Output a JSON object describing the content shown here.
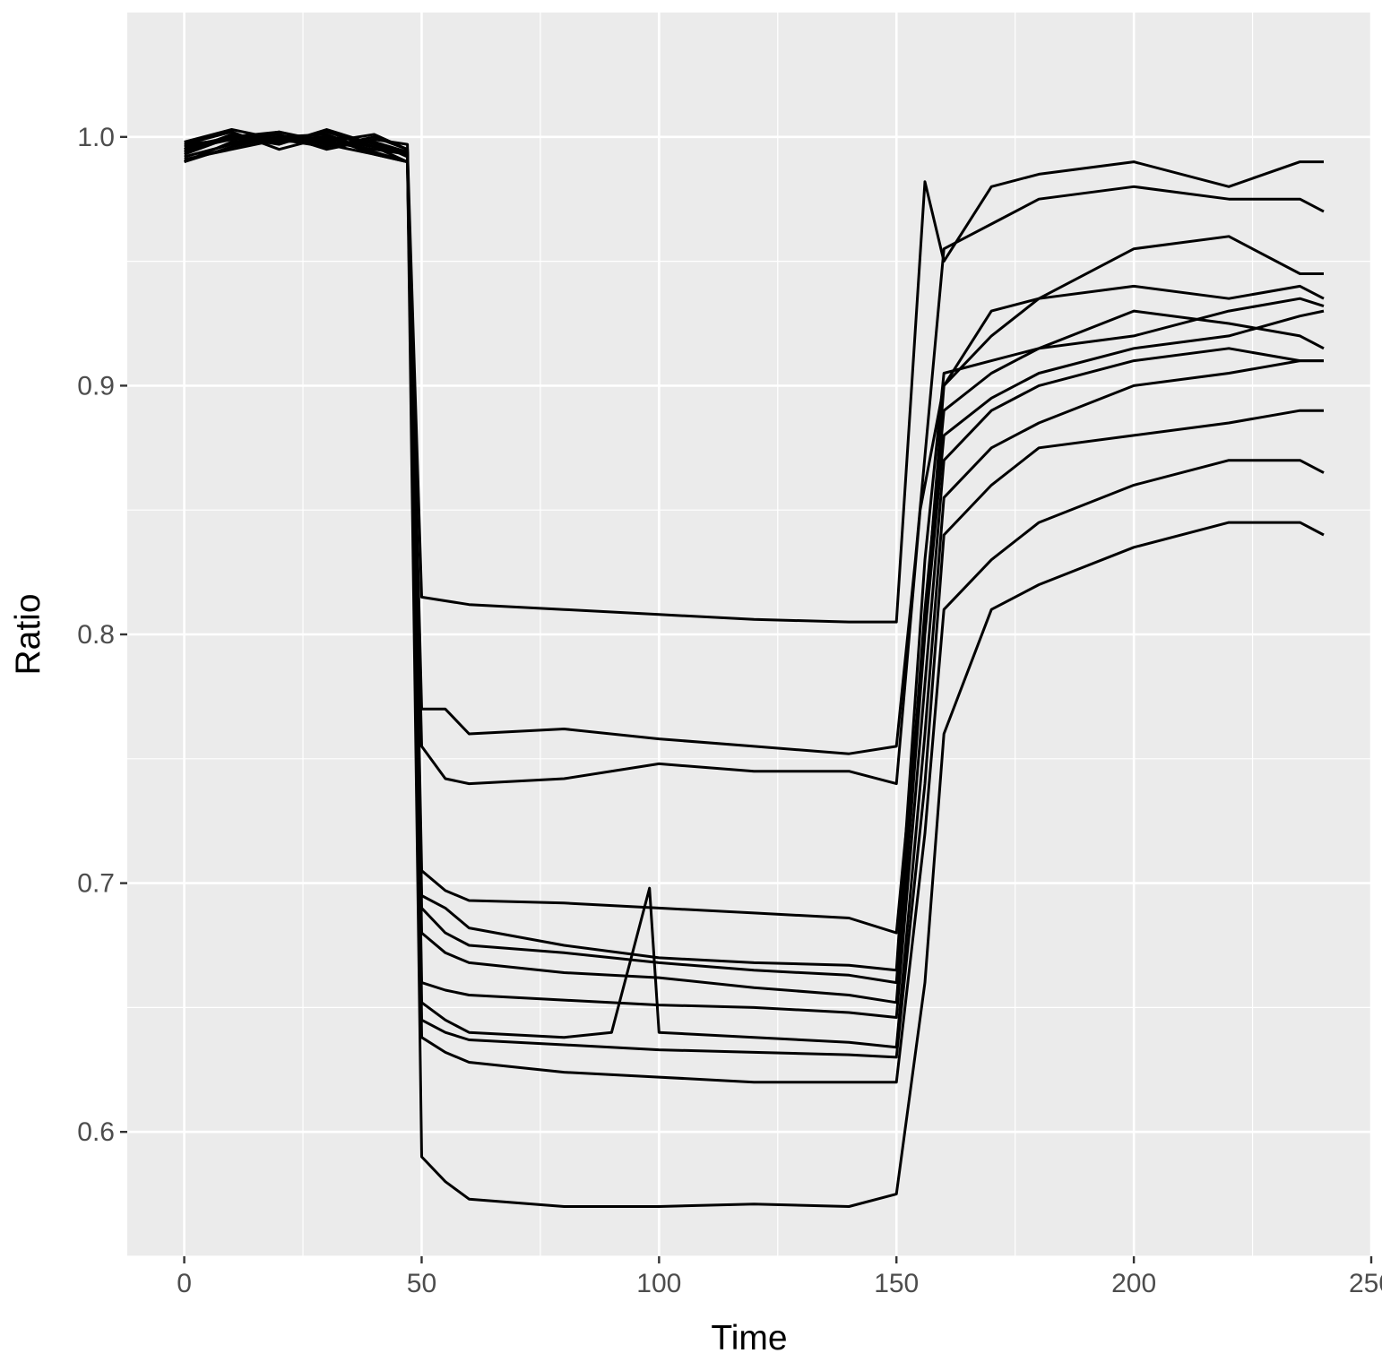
{
  "chart_data": {
    "type": "line",
    "title": "",
    "xlabel": "Time",
    "ylabel": "Ratio",
    "xlim": [
      -12,
      250
    ],
    "ylim": [
      0.55,
      1.05
    ],
    "x_ticks": [
      0,
      50,
      100,
      150,
      200,
      250
    ],
    "x_tick_labels": [
      "0",
      "50",
      "100",
      "150",
      "200",
      "250"
    ],
    "y_ticks": [
      0.6,
      0.7,
      0.8,
      0.9,
      1.0
    ],
    "y_tick_labels": [
      "0.6",
      "0.7",
      "0.8",
      "0.9",
      "1.0"
    ],
    "grid": true,
    "legend": "none",
    "colors": {
      "panel": "#EBEBEB",
      "grid": "#FFFFFF",
      "line": "#000000",
      "tick_text": "#4D4D4D"
    },
    "series": [
      {
        "x": [
          0,
          10,
          20,
          30,
          40,
          47,
          50,
          60,
          80,
          100,
          120,
          140,
          150,
          156,
          160,
          170,
          180,
          200,
          220,
          235,
          240
        ],
        "values": [
          0.995,
          1.0,
          1.002,
          0.998,
          1.001,
          0.995,
          0.815,
          0.812,
          0.81,
          0.808,
          0.806,
          0.805,
          0.805,
          0.982,
          0.95,
          0.98,
          0.985,
          0.99,
          0.98,
          0.99,
          0.99
        ]
      },
      {
        "x": [
          0,
          10,
          20,
          30,
          40,
          47,
          50,
          55,
          60,
          80,
          100,
          120,
          140,
          150,
          154,
          160,
          170,
          180,
          200,
          220,
          235,
          240
        ],
        "values": [
          0.99,
          0.998,
          1.0,
          0.997,
          0.993,
          0.99,
          0.77,
          0.77,
          0.76,
          0.762,
          0.758,
          0.755,
          0.752,
          0.755,
          0.83,
          0.955,
          0.965,
          0.975,
          0.98,
          0.975,
          0.975,
          0.97
        ]
      },
      {
        "x": [
          0,
          10,
          20,
          30,
          40,
          47,
          50,
          55,
          60,
          80,
          100,
          120,
          140,
          150,
          155,
          160,
          170,
          180,
          200,
          220,
          235,
          240
        ],
        "values": [
          0.993,
          1.0,
          0.998,
          1.002,
          0.996,
          0.993,
          0.755,
          0.742,
          0.74,
          0.742,
          0.748,
          0.745,
          0.745,
          0.74,
          0.85,
          0.9,
          0.92,
          0.935,
          0.955,
          0.96,
          0.945,
          0.945
        ]
      },
      {
        "x": [
          0,
          10,
          20,
          30,
          40,
          47,
          50,
          55,
          60,
          80,
          100,
          120,
          140,
          150,
          155,
          160,
          170,
          180,
          200,
          220,
          235,
          240
        ],
        "values": [
          0.997,
          1.002,
          0.995,
          1.0,
          0.998,
          0.992,
          0.705,
          0.697,
          0.693,
          0.692,
          0.69,
          0.688,
          0.686,
          0.68,
          0.78,
          0.9,
          0.93,
          0.935,
          0.94,
          0.935,
          0.94,
          0.935
        ]
      },
      {
        "x": [
          0,
          10,
          20,
          30,
          40,
          47,
          50,
          55,
          60,
          80,
          100,
          120,
          140,
          150,
          156,
          160,
          170,
          180,
          200,
          220,
          235,
          240
        ],
        "values": [
          0.995,
          0.999,
          1.001,
          0.995,
          0.999,
          0.997,
          0.695,
          0.69,
          0.682,
          0.675,
          0.67,
          0.668,
          0.667,
          0.665,
          0.83,
          0.905,
          0.91,
          0.915,
          0.93,
          0.925,
          0.92,
          0.915
        ]
      },
      {
        "x": [
          0,
          10,
          20,
          30,
          40,
          47,
          50,
          55,
          60,
          80,
          100,
          120,
          140,
          150,
          156,
          160,
          170,
          180,
          200,
          220,
          235,
          240
        ],
        "values": [
          0.998,
          1.003,
          0.999,
          0.996,
          1.0,
          0.995,
          0.69,
          0.68,
          0.675,
          0.672,
          0.668,
          0.665,
          0.663,
          0.66,
          0.81,
          0.89,
          0.905,
          0.915,
          0.92,
          0.93,
          0.935,
          0.932
        ]
      },
      {
        "x": [
          0,
          10,
          20,
          30,
          40,
          47,
          50,
          55,
          60,
          80,
          100,
          120,
          140,
          150,
          156,
          160,
          170,
          180,
          200,
          220,
          235,
          240
        ],
        "values": [
          0.992,
          0.997,
          1.0,
          1.001,
          0.994,
          0.99,
          0.68,
          0.672,
          0.668,
          0.664,
          0.662,
          0.658,
          0.655,
          0.652,
          0.8,
          0.88,
          0.895,
          0.905,
          0.915,
          0.92,
          0.928,
          0.93
        ]
      },
      {
        "x": [
          0,
          10,
          20,
          30,
          40,
          47,
          50,
          55,
          60,
          80,
          100,
          120,
          140,
          150,
          156,
          160,
          170,
          180,
          200,
          220,
          235,
          240
        ],
        "values": [
          0.996,
          1.0,
          0.997,
          1.003,
          0.997,
          0.994,
          0.66,
          0.657,
          0.655,
          0.653,
          0.651,
          0.65,
          0.648,
          0.646,
          0.78,
          0.87,
          0.89,
          0.9,
          0.91,
          0.915,
          0.91,
          0.91
        ]
      },
      {
        "x": [
          0,
          10,
          20,
          30,
          40,
          47,
          50,
          55,
          60,
          80,
          90,
          98,
          100,
          120,
          140,
          150,
          156,
          160,
          170,
          180,
          200,
          220,
          235,
          240
        ],
        "values": [
          0.99,
          0.996,
          1.0,
          0.998,
          0.995,
          0.993,
          0.652,
          0.645,
          0.64,
          0.638,
          0.64,
          0.698,
          0.64,
          0.638,
          0.636,
          0.634,
          0.76,
          0.855,
          0.875,
          0.885,
          0.9,
          0.905,
          0.91,
          0.91
        ]
      },
      {
        "x": [
          0,
          10,
          20,
          30,
          40,
          47,
          50,
          55,
          60,
          80,
          100,
          120,
          140,
          150,
          156,
          160,
          170,
          180,
          200,
          220,
          235,
          240
        ],
        "values": [
          0.994,
          1.001,
          0.998,
          0.999,
          0.996,
          0.99,
          0.645,
          0.64,
          0.637,
          0.635,
          0.633,
          0.632,
          0.631,
          0.63,
          0.74,
          0.84,
          0.86,
          0.875,
          0.88,
          0.885,
          0.89,
          0.89
        ]
      },
      {
        "x": [
          0,
          10,
          20,
          30,
          40,
          47,
          50,
          55,
          60,
          80,
          100,
          120,
          140,
          150,
          156,
          160,
          170,
          180,
          200,
          220,
          235,
          240
        ],
        "values": [
          0.997,
          0.999,
          1.002,
          0.997,
          0.998,
          0.994,
          0.638,
          0.632,
          0.628,
          0.624,
          0.622,
          0.62,
          0.62,
          0.62,
          0.72,
          0.81,
          0.83,
          0.845,
          0.86,
          0.87,
          0.87,
          0.865
        ]
      },
      {
        "x": [
          0,
          10,
          20,
          30,
          40,
          47,
          50,
          55,
          60,
          80,
          100,
          120,
          140,
          150,
          156,
          160,
          170,
          180,
          200,
          220,
          235,
          240
        ],
        "values": [
          0.991,
          0.995,
          0.999,
          1.0,
          0.993,
          0.99,
          0.59,
          0.58,
          0.573,
          0.57,
          0.57,
          0.571,
          0.57,
          0.575,
          0.66,
          0.76,
          0.81,
          0.82,
          0.835,
          0.845,
          0.845,
          0.84
        ]
      }
    ]
  }
}
